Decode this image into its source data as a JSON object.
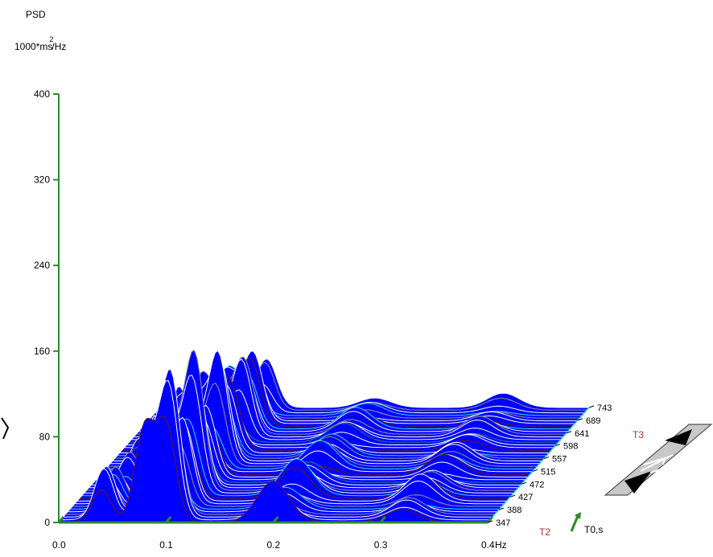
{
  "chart_data": {
    "type": "surface-3d",
    "ylabel": "PSD",
    "yunit_base": "1000*ms",
    "yunit_exp": "2",
    "yunit_tail": "/Hz",
    "xlabel": "Hz",
    "zlabel": "T0,s",
    "yticks": [
      "0",
      "80",
      "160",
      "240",
      "320",
      "400"
    ],
    "xticks": [
      "0.0",
      "0.1",
      "0.2",
      "0.3",
      "0.4"
    ],
    "zticks": [
      "347",
      "388",
      "427",
      "472",
      "515",
      "557",
      "598",
      "641",
      "689",
      "743"
    ],
    "xlim": [
      0,
      0.4
    ],
    "ylim": [
      0,
      400
    ],
    "markers": [
      {
        "label": "T2",
        "color": "#b03030"
      },
      {
        "label": "T3",
        "color": "#b03030"
      }
    ],
    "peaks": [
      {
        "freq": 0.04,
        "psd": 55
      },
      {
        "freq": 0.08,
        "psd": 110
      },
      {
        "freq": 0.1,
        "psd": 150
      },
      {
        "freq": 0.2,
        "psd": 40
      },
      {
        "freq": 0.32,
        "psd": 30
      }
    ],
    "colors": {
      "axis": "#2a8a2a",
      "base": "#0000ff",
      "highlight": "#33e0e0",
      "ridge": "#000000",
      "marker": "#b03030"
    }
  },
  "nav_widget": {
    "icon": "scroll-arrows-icon"
  }
}
